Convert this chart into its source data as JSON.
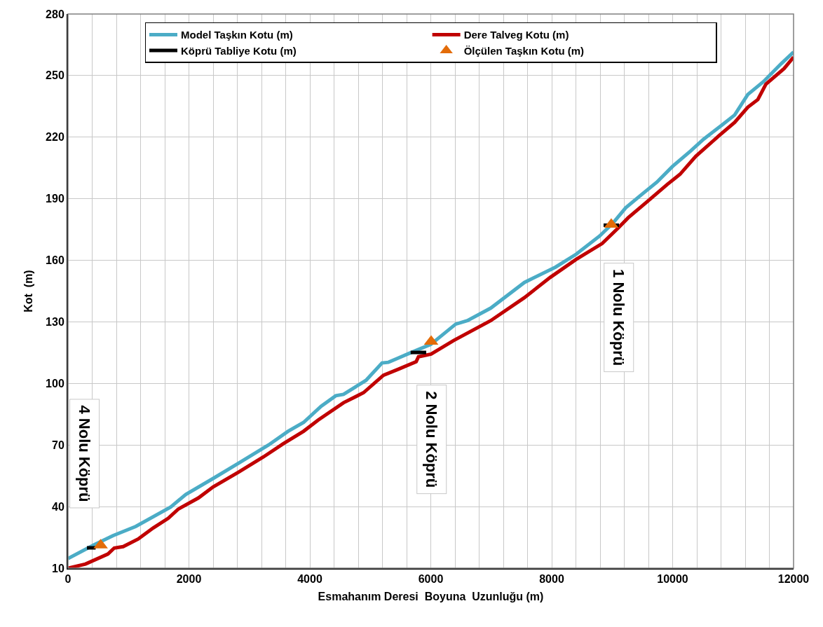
{
  "chart_data": {
    "type": "line",
    "xlabel": "Esmahanım Deresi  Boyuna  Uzunluğu (m)",
    "ylabel": "Kot  (m)",
    "xlim": [
      0,
      12000
    ],
    "xticks": [
      0,
      2000,
      4000,
      6000,
      8000,
      10000,
      12000
    ],
    "ylim": [
      10,
      280
    ],
    "yticks": [
      10,
      40,
      70,
      100,
      130,
      160,
      190,
      220,
      250,
      280
    ],
    "grid": true,
    "legend": "top",
    "line_style": "solid",
    "series": [
      {
        "name": "Model Taşkın Kotu (m)",
        "color": "#4bacc6",
        "marker": "none",
        "x": [
          0,
          418,
          747,
          1120,
          1700,
          1948,
          2400,
          2817,
          3316,
          3640,
          3896,
          4186,
          4429,
          4557,
          4928,
          5194,
          5300,
          5670,
          6000,
          6412,
          6605,
          6992,
          7548,
          8065,
          8406,
          8795,
          9009,
          9224,
          9481,
          9740,
          9997,
          10296,
          10512,
          10812,
          11026,
          11243,
          11500,
          11800,
          12000
        ],
        "values": [
          14.7,
          21.2,
          25.9,
          30.3,
          39.8,
          45.9,
          53.7,
          61.1,
          70,
          76.7,
          81,
          88.9,
          94,
          94.7,
          101.5,
          110,
          110.3,
          115,
          119,
          128.9,
          130.6,
          136.7,
          149.2,
          156.7,
          163,
          171.9,
          178,
          185.6,
          191.9,
          198.1,
          205.7,
          213.2,
          219,
          225.8,
          230.8,
          240.8,
          247,
          255.9,
          261.5
        ]
      },
      {
        "name": "Dere Talveg Kotu (m)",
        "color": "#c00000",
        "marker": "none",
        "x": [
          0,
          290,
          660,
          765,
          912,
          1160,
          1410,
          1658,
          1820,
          2157,
          2400,
          2817,
          3232,
          3560,
          3896,
          4139,
          4557,
          4888,
          5217,
          5468,
          5758,
          5797,
          6006,
          6377,
          6991,
          7548,
          7977,
          8406,
          8835,
          9096,
          9264,
          9565,
          9913,
          10122,
          10383,
          10771,
          11026,
          11243,
          11409,
          11543,
          11843,
          12000
        ],
        "values": [
          10,
          12,
          16.9,
          19.8,
          20.5,
          24.2,
          29.6,
          34.3,
          38.7,
          44.2,
          49.6,
          56.7,
          64.2,
          70.6,
          76.7,
          82.2,
          90.6,
          95.5,
          104,
          107,
          110.6,
          113,
          114.3,
          120.9,
          130.6,
          141.8,
          151.7,
          160.5,
          168.2,
          175.6,
          180.7,
          188.2,
          197,
          201.9,
          210.7,
          220.8,
          227.2,
          234.6,
          238.3,
          245.8,
          253.4,
          259
        ]
      },
      {
        "name": "Köprü Tabliye Kotu (m)",
        "color": "#000000",
        "marker": "none",
        "x": [
          313,
          457,
          null,
          5667,
          5925,
          null,
          8858,
          9113
        ],
        "values": [
          19.9,
          19.9,
          null,
          115.1,
          115.1,
          null,
          177.1,
          177.1
        ]
      },
      {
        "name": "Ölçülen Taşkın Kotu (m)",
        "type": "scatter",
        "color": "#e36c09",
        "marker": "triangle",
        "x": [
          540,
          6006,
          8985
        ],
        "values": [
          21.2,
          120.4,
          177.4
        ]
      }
    ],
    "annotations": [
      "4 Nolu Köprü",
      "2 Nolu Köprü",
      "1 Nolu Köprü"
    ]
  }
}
